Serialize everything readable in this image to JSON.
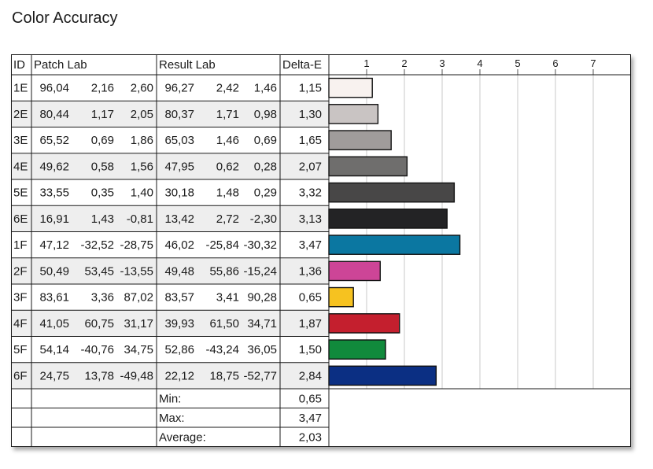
{
  "title": "Color Accuracy",
  "table": {
    "headers": {
      "id": "ID",
      "patch": "Patch Lab",
      "result": "Result Lab",
      "delta": "Delta-E"
    },
    "summary": [
      {
        "label": "Min:",
        "value": "0,65"
      },
      {
        "label": "Max:",
        "value": "3,47"
      },
      {
        "label": "Average:",
        "value": "2,03"
      }
    ]
  },
  "chart_data": {
    "type": "bar",
    "orientation": "horizontal",
    "title": "Color Accuracy",
    "xlim": [
      0,
      8
    ],
    "ticks": [
      "1",
      "2",
      "3",
      "4",
      "5",
      "6",
      "7"
    ],
    "grid": true,
    "rows": [
      {
        "id": "1E",
        "patch": [
          "96,04",
          "2,16",
          "2,60"
        ],
        "result": [
          "96,27",
          "2,42",
          "1,46"
        ],
        "delta": "1,15",
        "value": 1.15,
        "color": "#f8f2ef"
      },
      {
        "id": "2E",
        "patch": [
          "80,44",
          "1,17",
          "2,05"
        ],
        "result": [
          "80,37",
          "1,71",
          "0,98"
        ],
        "delta": "1,30",
        "value": 1.3,
        "color": "#c9c4c3"
      },
      {
        "id": "3E",
        "patch": [
          "65,52",
          "0,69",
          "1,86"
        ],
        "result": [
          "65,03",
          "1,46",
          "0,69"
        ],
        "delta": "1,65",
        "value": 1.65,
        "color": "#a09c9b"
      },
      {
        "id": "4E",
        "patch": [
          "49,62",
          "0,58",
          "1,56"
        ],
        "result": [
          "47,95",
          "0,62",
          "0,28"
        ],
        "delta": "2,07",
        "value": 2.07,
        "color": "#6f6e6d"
      },
      {
        "id": "5E",
        "patch": [
          "33,55",
          "0,35",
          "1,40"
        ],
        "result": [
          "30,18",
          "1,48",
          "0,29"
        ],
        "delta": "3,32",
        "value": 3.32,
        "color": "#484747"
      },
      {
        "id": "6E",
        "patch": [
          "16,91",
          "1,43",
          "-0,81"
        ],
        "result": [
          "13,42",
          "2,72",
          "-2,30"
        ],
        "delta": "3,13",
        "value": 3.13,
        "color": "#232325"
      },
      {
        "id": "1F",
        "patch": [
          "47,12",
          "-32,52",
          "-28,75"
        ],
        "result": [
          "46,02",
          "-25,84",
          "-30,32"
        ],
        "delta": "3,47",
        "value": 3.47,
        "color": "#0b77a1"
      },
      {
        "id": "2F",
        "patch": [
          "50,49",
          "53,45",
          "-13,55"
        ],
        "result": [
          "49,48",
          "55,86",
          "-15,24"
        ],
        "delta": "1,36",
        "value": 1.36,
        "color": "#cd4597"
      },
      {
        "id": "3F",
        "patch": [
          "83,61",
          "3,36",
          "87,02"
        ],
        "result": [
          "83,57",
          "3,41",
          "90,28"
        ],
        "delta": "0,65",
        "value": 0.65,
        "color": "#f6c220"
      },
      {
        "id": "4F",
        "patch": [
          "41,05",
          "60,75",
          "31,17"
        ],
        "result": [
          "39,93",
          "61,50",
          "34,71"
        ],
        "delta": "1,87",
        "value": 1.87,
        "color": "#c41f2e"
      },
      {
        "id": "5F",
        "patch": [
          "54,14",
          "-40,76",
          "34,75"
        ],
        "result": [
          "52,86",
          "-43,24",
          "36,05"
        ],
        "delta": "1,50",
        "value": 1.5,
        "color": "#118a3c"
      },
      {
        "id": "6F",
        "patch": [
          "24,75",
          "13,78",
          "-49,48"
        ],
        "result": [
          "22,12",
          "18,75",
          "-52,77"
        ],
        "delta": "2,84",
        "value": 2.84,
        "color": "#0b2f83"
      }
    ]
  }
}
